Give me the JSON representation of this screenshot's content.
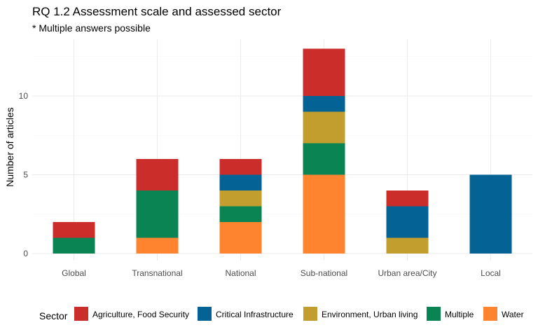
{
  "chart_data": {
    "type": "bar",
    "stacked": true,
    "title": "RQ 1.2 Assessment scale and assessed sector",
    "subtitle": "* Multiple answers possible",
    "xlabel": "",
    "ylabel": "Number of articles",
    "categories": [
      "Global",
      "Transnational",
      "National",
      "Sub-national",
      "Urban area/City",
      "Local"
    ],
    "ylim": [
      0,
      13.6
    ],
    "yticks": [
      0,
      5,
      10
    ],
    "grid": true,
    "legend": {
      "title": "Sector",
      "position": "bottom"
    },
    "series": [
      {
        "name": "Water",
        "color": "#FF8430",
        "values": [
          0,
          1,
          2,
          5,
          0,
          0
        ]
      },
      {
        "name": "Multiple",
        "color": "#0B8454",
        "values": [
          1,
          3,
          1,
          2,
          0,
          0
        ]
      },
      {
        "name": "Environment, Urban living",
        "color": "#C29E2E",
        "values": [
          0,
          0,
          1,
          2,
          1,
          0
        ]
      },
      {
        "name": "Critical Infrastructure",
        "color": "#046295",
        "values": [
          0,
          0,
          1,
          1,
          2,
          5
        ]
      },
      {
        "name": "Agriculture, Food Security",
        "color": "#CB2D2B",
        "values": [
          1,
          2,
          1,
          3,
          1,
          0
        ]
      }
    ],
    "legend_order": [
      "Agriculture, Food Security",
      "Critical Infrastructure",
      "Environment, Urban living",
      "Multiple",
      "Water"
    ]
  }
}
